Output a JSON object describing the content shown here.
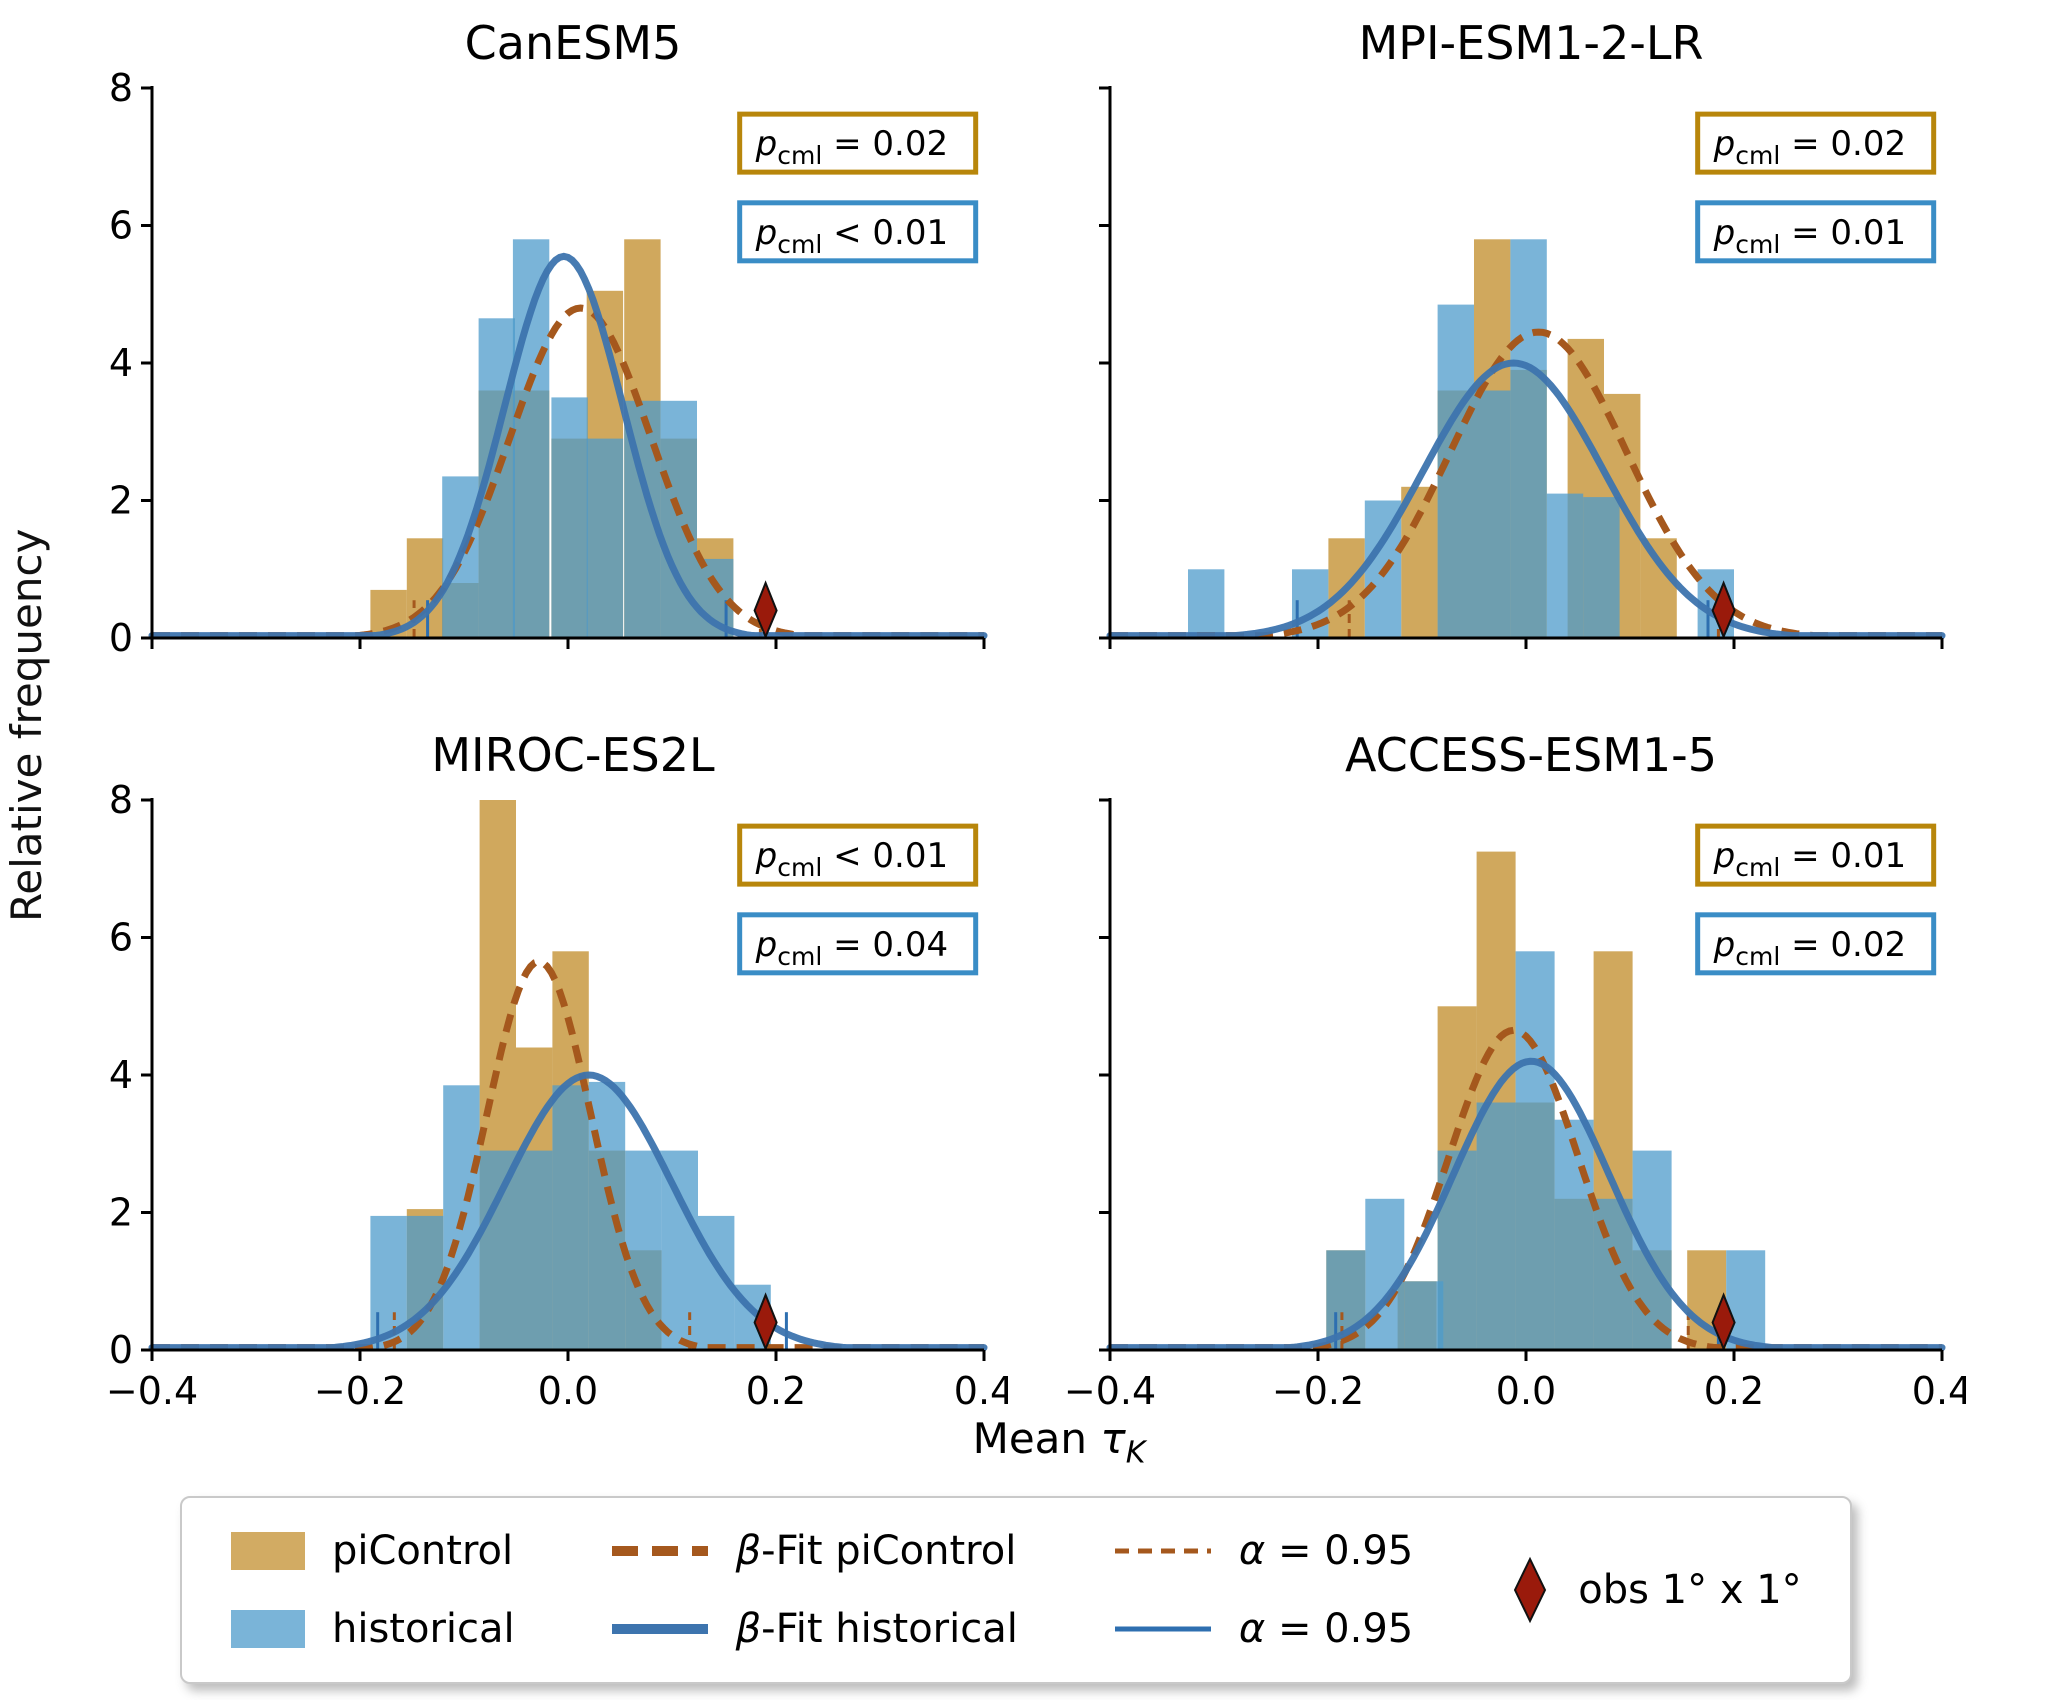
{
  "figure": {
    "ylabel": "Relative frequency",
    "xlabel": {
      "prefix": "Mean ",
      "symbol": "τ",
      "sub": "K"
    },
    "xlim": [
      -0.4,
      0.4
    ],
    "ylim": [
      0,
      8
    ],
    "yticks": {
      "values": [
        0,
        2,
        4,
        6,
        8
      ],
      "labels": [
        "0",
        "2",
        "4",
        "6",
        "8"
      ]
    },
    "xticks": {
      "values": [
        -0.4,
        -0.2,
        0,
        0.2,
        0.4
      ],
      "labels": [
        "−0.4",
        "−0.2",
        "0.0",
        "0.2",
        "0.4"
      ]
    }
  },
  "colors": {
    "bar_piControl": "rgba(195,143,47,0.78)",
    "bar_historical": "rgba(78,155,203,0.75)",
    "swatch_piControl": "#d2ab63",
    "swatch_historical": "#7ab4d8",
    "fit_piControl": "#a5581d",
    "fit_historical": "#3d74ae",
    "alpha_piControl": "#a5581d",
    "alpha_historical": "#2e6fb0",
    "box_piControl": "#b8860b",
    "box_historical": "#3a8dc6",
    "obs": "#9a1a0b",
    "axis": "#000000"
  },
  "legend": {
    "items": [
      {
        "type": "patch",
        "series": "piControl",
        "label": "piControl"
      },
      {
        "type": "patch",
        "series": "historical",
        "label": "historical"
      },
      {
        "type": "line",
        "style": "dashed-thick",
        "series": "piControl",
        "symbol": "β",
        "rest": "-Fit piControl"
      },
      {
        "type": "line",
        "style": "solid-thick",
        "series": "historical",
        "symbol": "β",
        "rest": "-Fit historical"
      },
      {
        "type": "line",
        "style": "dashed-thin",
        "series": "piControl",
        "symbol": "α",
        "rest": " = 0.95"
      },
      {
        "type": "line",
        "style": "solid-thin",
        "series": "historical",
        "symbol": "α",
        "rest": " = 0.95"
      },
      {
        "type": "marker",
        "series": "obs",
        "label": "obs 1° x 1°"
      }
    ]
  },
  "chart_data": [
    {
      "title": "CanESM5",
      "type": "histogram+betafit",
      "bin_width": 0.035,
      "p_values": {
        "piControl": {
          "p": "p",
          "sub": "cml",
          "rel": "=",
          "value": "0.02"
        },
        "historical": {
          "p": "p",
          "sub": "cml",
          "rel": "<",
          "value": "0.01"
        }
      },
      "histograms": {
        "piControl": [
          {
            "x0": -0.19,
            "h": 0.7
          },
          {
            "x0": -0.155,
            "h": 1.45
          },
          {
            "x0": -0.121,
            "h": 0.8
          },
          {
            "x0": -0.086,
            "h": 3.6
          },
          {
            "x0": -0.053,
            "h": 3.6
          },
          {
            "x0": -0.016,
            "h": 2.9
          },
          {
            "x0": 0.018,
            "h": 5.05
          },
          {
            "x0": 0.054,
            "h": 5.8
          },
          {
            "x0": 0.089,
            "h": 2.9
          },
          {
            "x0": 0.124,
            "h": 1.45
          }
        ],
        "historical": [
          {
            "x0": -0.121,
            "h": 2.35
          },
          {
            "x0": -0.086,
            "h": 4.65
          },
          {
            "x0": -0.053,
            "h": 5.8
          },
          {
            "x0": -0.016,
            "h": 3.5
          },
          {
            "x0": 0.018,
            "h": 2.9
          },
          {
            "x0": 0.054,
            "h": 3.45
          },
          {
            "x0": 0.089,
            "h": 3.45
          },
          {
            "x0": 0.124,
            "h": 1.15
          }
        ]
      },
      "beta_fits": {
        "piControl": {
          "mu": 0.012,
          "sigma": 0.068,
          "peak": 4.8
        },
        "historical": {
          "mu": -0.004,
          "sigma": 0.057,
          "peak": 5.55
        }
      },
      "alpha_095": {
        "piControl": [
          -0.148,
          0.185
        ],
        "historical": [
          -0.135,
          0.152
        ]
      },
      "obs_marker": {
        "x": 0.19
      }
    },
    {
      "title": "MPI-ESM1-2-LR",
      "type": "histogram+betafit",
      "bin_width": 0.035,
      "p_values": {
        "piControl": {
          "p": "p",
          "sub": "cml",
          "rel": "=",
          "value": "0.02"
        },
        "historical": {
          "p": "p",
          "sub": "cml",
          "rel": "=",
          "value": "0.01"
        }
      },
      "histograms": {
        "piControl": [
          {
            "x0": -0.19,
            "h": 1.45
          },
          {
            "x0": -0.12,
            "h": 2.2
          },
          {
            "x0": -0.085,
            "h": 3.6
          },
          {
            "x0": -0.05,
            "h": 5.8
          },
          {
            "x0": -0.015,
            "h": 3.9
          },
          {
            "x0": 0.04,
            "h": 4.35
          },
          {
            "x0": 0.075,
            "h": 3.55
          },
          {
            "x0": 0.11,
            "h": 1.45
          }
        ],
        "historical": [
          {
            "x0": -0.325,
            "h": 1.0
          },
          {
            "x0": -0.225,
            "h": 1.0
          },
          {
            "x0": -0.155,
            "h": 2.0
          },
          {
            "x0": -0.085,
            "h": 4.85
          },
          {
            "x0": -0.05,
            "h": 3.6
          },
          {
            "x0": -0.015,
            "h": 5.8
          },
          {
            "x0": 0.02,
            "h": 2.1
          },
          {
            "x0": 0.055,
            "h": 2.05
          },
          {
            "x0": 0.165,
            "h": 1.0
          }
        ]
      },
      "beta_fits": {
        "piControl": {
          "mu": 0.012,
          "sigma": 0.085,
          "peak": 4.45
        },
        "historical": {
          "mu": -0.012,
          "sigma": 0.087,
          "peak": 4.0
        }
      },
      "alpha_095": {
        "piControl": [
          -0.17,
          0.185
        ],
        "historical": [
          -0.22,
          0.175
        ]
      },
      "obs_marker": {
        "x": 0.19
      }
    },
    {
      "title": "MIROC-ES2L",
      "type": "histogram+betafit",
      "bin_width": 0.035,
      "p_values": {
        "piControl": {
          "p": "p",
          "sub": "cml",
          "rel": "<",
          "value": "0.01"
        },
        "historical": {
          "p": "p",
          "sub": "cml",
          "rel": "=",
          "value": "0.04"
        }
      },
      "histograms": {
        "piControl": [
          {
            "x0": -0.155,
            "h": 2.05
          },
          {
            "x0": -0.085,
            "h": 8.0
          },
          {
            "x0": -0.05,
            "h": 4.4
          },
          {
            "x0": -0.015,
            "h": 5.8
          },
          {
            "x0": 0.02,
            "h": 2.9
          },
          {
            "x0": 0.055,
            "h": 1.45
          }
        ],
        "historical": [
          {
            "x0": -0.19,
            "h": 1.95
          },
          {
            "x0": -0.155,
            "h": 1.95
          },
          {
            "x0": -0.12,
            "h": 3.85
          },
          {
            "x0": -0.085,
            "h": 2.9
          },
          {
            "x0": -0.05,
            "h": 2.9
          },
          {
            "x0": -0.015,
            "h": 3.85
          },
          {
            "x0": 0.02,
            "h": 3.9
          },
          {
            "x0": 0.055,
            "h": 2.9
          },
          {
            "x0": 0.09,
            "h": 2.9
          },
          {
            "x0": 0.125,
            "h": 1.95
          },
          {
            "x0": 0.16,
            "h": 0.95
          }
        ]
      },
      "beta_fits": {
        "piControl": {
          "mu": -0.028,
          "sigma": 0.05,
          "peak": 5.65
        },
        "historical": {
          "mu": 0.02,
          "sigma": 0.08,
          "peak": 4.0
        }
      },
      "alpha_095": {
        "piControl": [
          -0.167,
          0.117
        ],
        "historical": [
          -0.183,
          0.21
        ]
      },
      "obs_marker": {
        "x": 0.19
      }
    },
    {
      "title": "ACCESS-ESM1-5",
      "type": "histogram+betafit",
      "bin_width": 0.0375,
      "p_values": {
        "piControl": {
          "p": "p",
          "sub": "cml",
          "rel": "=",
          "value": "0.01"
        },
        "historical": {
          "p": "p",
          "sub": "cml",
          "rel": "=",
          "value": "0.02"
        }
      },
      "histograms": {
        "piControl": [
          {
            "x0": -0.192,
            "h": 1.45
          },
          {
            "x0": -0.1235,
            "h": 1.0
          },
          {
            "x0": -0.085,
            "h": 5.0
          },
          {
            "x0": -0.0475,
            "h": 7.25
          },
          {
            "x0": -0.01,
            "h": 3.6
          },
          {
            "x0": 0.0275,
            "h": 2.2
          },
          {
            "x0": 0.065,
            "h": 5.8
          },
          {
            "x0": 0.1025,
            "h": 1.45
          },
          {
            "x0": 0.155,
            "h": 1.45
          }
        ],
        "historical": [
          {
            "x0": -0.192,
            "h": 1.45
          },
          {
            "x0": -0.1545,
            "h": 2.2
          },
          {
            "x0": -0.117,
            "h": 1.0
          },
          {
            "x0": -0.085,
            "h": 2.9
          },
          {
            "x0": -0.0475,
            "h": 3.6
          },
          {
            "x0": -0.01,
            "h": 5.8
          },
          {
            "x0": 0.0275,
            "h": 3.35
          },
          {
            "x0": 0.065,
            "h": 2.2
          },
          {
            "x0": 0.1025,
            "h": 2.9
          },
          {
            "x0": 0.1925,
            "h": 1.45
          }
        ]
      },
      "beta_fits": {
        "piControl": {
          "mu": -0.012,
          "sigma": 0.062,
          "peak": 4.65
        },
        "historical": {
          "mu": 0.005,
          "sigma": 0.075,
          "peak": 4.2
        }
      },
      "alpha_095": {
        "piControl": [
          -0.177,
          0.156
        ],
        "historical": [
          -0.183,
          0.185
        ]
      },
      "obs_marker": {
        "x": 0.19
      }
    }
  ]
}
